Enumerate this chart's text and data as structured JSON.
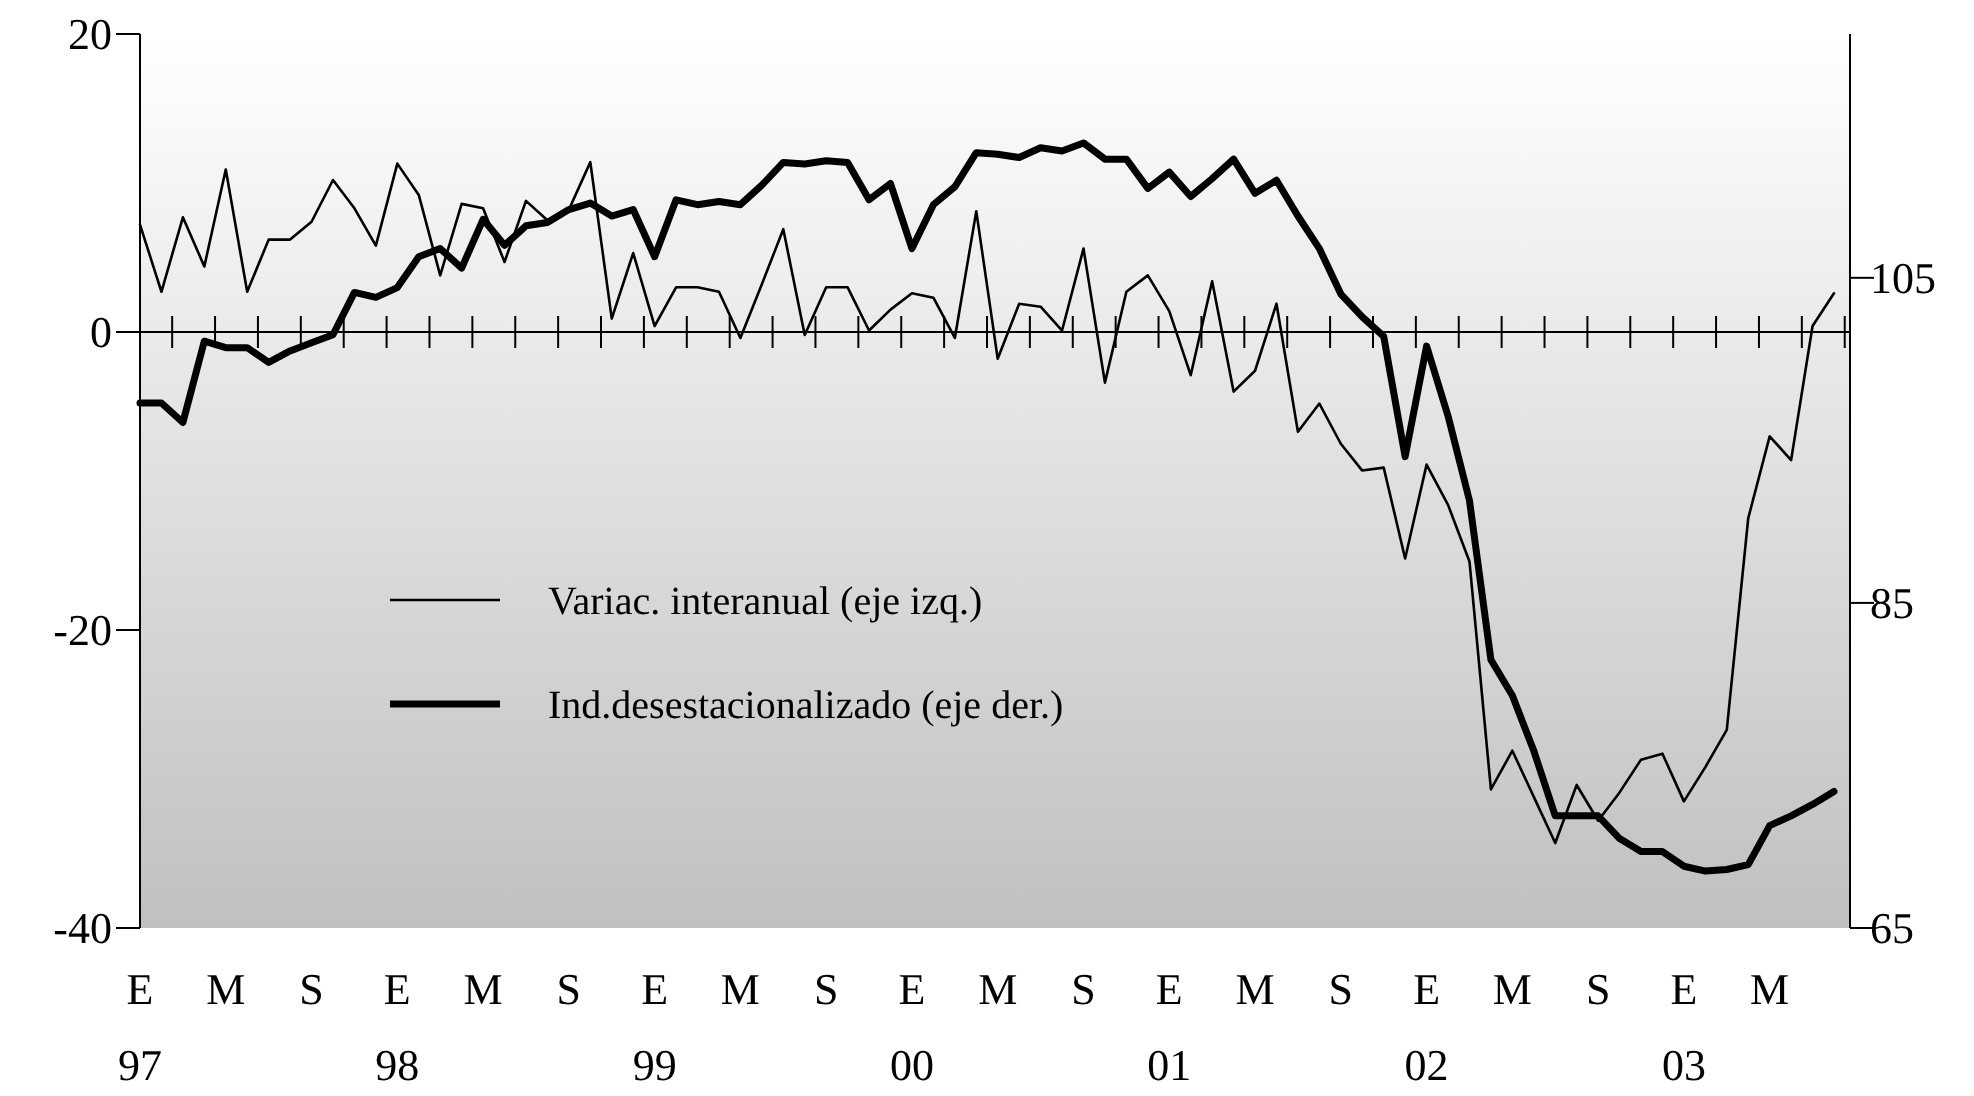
{
  "chart_data": {
    "type": "line",
    "categories": [
      "E 97",
      null,
      null,
      null,
      "M",
      null,
      null,
      null,
      "S",
      null,
      null,
      null,
      "E 98",
      null,
      null,
      null,
      "M",
      null,
      null,
      null,
      "S",
      null,
      null,
      null,
      "E 99",
      null,
      null,
      null,
      "M",
      null,
      null,
      null,
      "S",
      null,
      null,
      null,
      "E 00",
      null,
      null,
      null,
      "M",
      null,
      null,
      null,
      "S",
      null,
      null,
      null,
      "E 01",
      null,
      null,
      null,
      "M",
      null,
      null,
      null,
      "S",
      null,
      null,
      null,
      "E 02",
      null,
      null,
      null,
      "M",
      null,
      null,
      null,
      "S",
      null,
      null,
      null,
      "E 03",
      null,
      null,
      null,
      "M",
      null,
      null,
      null
    ],
    "series": [
      {
        "name": "Variac. interanual (eje izq.)",
        "color": "#000000",
        "axis": "y",
        "values": [
          7.2,
          2.7,
          7.7,
          4.4,
          10.9,
          2.7,
          6.2,
          6.2,
          7.4,
          10.2,
          8.3,
          5.8,
          11.3,
          9.2,
          3.8,
          8.6,
          8.3,
          4.7,
          8.8,
          7.5,
          8.2,
          11.4,
          0.9,
          5.3,
          0.4,
          3.0,
          3.0,
          2.7,
          -0.4,
          3.2,
          6.9,
          -0.2,
          3.0,
          3.0,
          0.1,
          1.5,
          2.6,
          2.3,
          -0.4,
          8.1,
          -1.8,
          1.9,
          1.7,
          0.1,
          5.6,
          -3.4,
          2.7,
          3.8,
          1.4,
          -2.9,
          3.4,
          -4.0,
          -2.6,
          1.9,
          -6.7,
          -4.8,
          -7.5,
          -9.3,
          -9.1,
          -15.2,
          -8.9,
          -11.6,
          -15.4,
          -30.7,
          -28.1,
          -31.2,
          -34.3,
          -30.4,
          -32.8,
          -30.9,
          -28.7,
          -28.3,
          -31.5,
          -29.2,
          -26.7,
          -12.5,
          -7.0,
          -8.6,
          0.4,
          2.6
        ]
      },
      {
        "name": "Ind.desestacionalizado (eje der.)",
        "color": "#000000",
        "axis": "y2",
        "values": [
          97.3,
          97.3,
          96.1,
          101.1,
          100.7,
          100.7,
          99.8,
          100.5,
          101.0,
          101.5,
          104.1,
          103.8,
          104.4,
          106.3,
          106.8,
          105.6,
          108.6,
          107.0,
          108.2,
          108.4,
          109.2,
          109.6,
          108.8,
          109.2,
          106.3,
          109.8,
          109.5,
          109.7,
          109.5,
          110.7,
          112.1,
          112.0,
          112.2,
          112.1,
          109.8,
          110.8,
          106.8,
          109.5,
          110.6,
          112.7,
          112.6,
          112.4,
          113.0,
          112.8,
          113.3,
          112.3,
          112.3,
          110.5,
          111.5,
          110.0,
          111.1,
          112.3,
          110.2,
          111.0,
          108.8,
          106.8,
          104.0,
          102.6,
          101.4,
          94.0,
          100.8,
          96.5,
          91.3,
          81.5,
          79.3,
          75.9,
          71.9,
          71.9,
          71.9,
          70.5,
          69.7,
          69.7,
          68.8,
          68.5,
          68.6,
          68.9,
          71.3,
          71.9,
          72.6,
          73.4
        ]
      }
    ],
    "ylim": [
      -40,
      20
    ],
    "yticks": [
      -40,
      -20,
      0,
      20
    ],
    "y2lim": [
      65,
      120
    ],
    "y2ticks": [
      65,
      85,
      105
    ],
    "ref_lines": [
      {
        "axis": "y",
        "value": 0
      }
    ],
    "legend": "center",
    "marker": "none",
    "line_style": "solid"
  }
}
